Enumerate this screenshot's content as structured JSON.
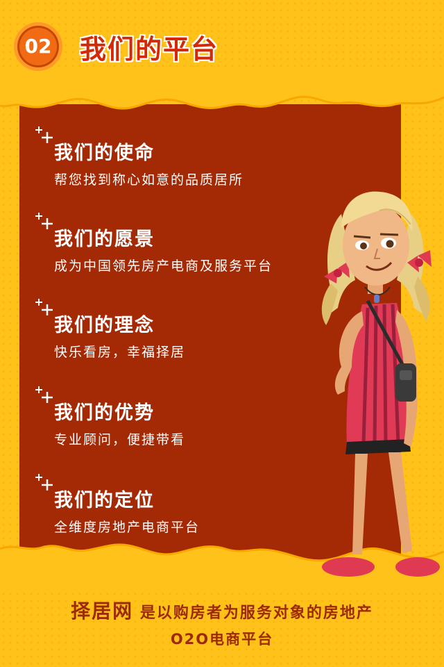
{
  "header": {
    "badge": "02",
    "title": "我们的平台"
  },
  "items": [
    {
      "title": "我们的使命",
      "desc": "帮您找到称心如意的品质居所"
    },
    {
      "title": "我们的愿景",
      "desc": "成为中国领先房产电商及服务平台"
    },
    {
      "title": "我们的理念",
      "desc": "快乐看房，幸福择居"
    },
    {
      "title": "我们的优势",
      "desc": "专业顾问，便捷带看"
    },
    {
      "title": "我们的定位",
      "desc": "全维度房地产电商平台"
    }
  ],
  "footer": {
    "brand": "择居网",
    "text": "是以购房者为服务对象的房地产",
    "line2": "O2O电商平台"
  },
  "colors": {
    "background": "#ffc21a",
    "panel": "#a42a06",
    "accent": "#d22a07"
  },
  "icons": [
    "sparkle-icon",
    "girl-illustration"
  ]
}
